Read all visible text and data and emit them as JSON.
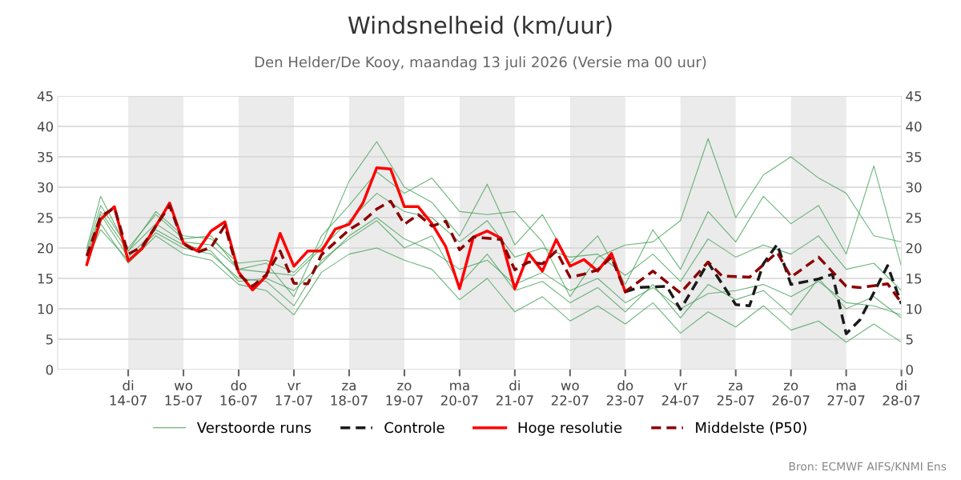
{
  "chart_data": {
    "type": "line",
    "title": "Windsnelheid (km/uur)",
    "subtitle": "Den Helder/De Kooy, maandag 13 juli 2026 (Versie ma 00 uur)",
    "annotations": [
      "Bron: ECMWF AIFS/KNMI Ens"
    ],
    "xlim": [
      "2026-07-12T17:20",
      "2026-07-28T00:00"
    ],
    "xticks": [
      {
        "value": "2026-07-14",
        "label": "di\n14-07"
      },
      {
        "value": "2026-07-15",
        "label": "wo\n15-07"
      },
      {
        "value": "2026-07-16",
        "label": "do\n16-07"
      },
      {
        "value": "2026-07-17",
        "label": "vr\n17-07"
      },
      {
        "value": "2026-07-18",
        "label": "za\n18-07"
      },
      {
        "value": "2026-07-19",
        "label": "zo\n19-07"
      },
      {
        "value": "2026-07-20",
        "label": "ma\n20-07"
      },
      {
        "value": "2026-07-21",
        "label": "di\n21-07"
      },
      {
        "value": "2026-07-22",
        "label": "wo\n22-07"
      },
      {
        "value": "2026-07-23",
        "label": "do\n23-07"
      },
      {
        "value": "2026-07-24",
        "label": "vr\n24-07"
      },
      {
        "value": "2026-07-25",
        "label": "za\n25-07"
      },
      {
        "value": "2026-07-26",
        "label": "zo\n26-07"
      },
      {
        "value": "2026-07-27",
        "label": "ma\n27-07"
      },
      {
        "value": "2026-07-28",
        "label": "di\n28-07"
      }
    ],
    "ylim": [
      0,
      45
    ],
    "yticks": [
      0,
      5,
      10,
      15,
      20,
      25,
      30,
      35,
      40,
      45
    ],
    "y2lim": [
      0,
      45
    ],
    "y2ticks": [
      0,
      5,
      10,
      15,
      20,
      25,
      30,
      35,
      40,
      45
    ],
    "grid": "y",
    "legend": "bottom",
    "bands": [
      {
        "axis": "x",
        "from": "2026-07-14",
        "to": "2026-07-15",
        "color": "#ebebeb"
      },
      {
        "axis": "x",
        "from": "2026-07-16",
        "to": "2026-07-17",
        "color": "#ebebeb"
      },
      {
        "axis": "x",
        "from": "2026-07-18",
        "to": "2026-07-19",
        "color": "#ebebeb"
      },
      {
        "axis": "x",
        "from": "2026-07-20",
        "to": "2026-07-21",
        "color": "#ebebeb"
      },
      {
        "axis": "x",
        "from": "2026-07-22",
        "to": "2026-07-23",
        "color": "#ebebeb"
      },
      {
        "axis": "x",
        "from": "2026-07-24",
        "to": "2026-07-25",
        "color": "#ebebeb"
      },
      {
        "axis": "x",
        "from": "2026-07-26",
        "to": "2026-07-27",
        "color": "#ebebeb"
      }
    ],
    "x": [
      "2026-07-13T06:00",
      "2026-07-13T12:00",
      "2026-07-14T00:00",
      "2026-07-14T12:00",
      "2026-07-15T00:00",
      "2026-07-15T12:00",
      "2026-07-16T00:00",
      "2026-07-16T12:00",
      "2026-07-17T00:00",
      "2026-07-17T12:00",
      "2026-07-18T00:00",
      "2026-07-18T12:00",
      "2026-07-19T00:00",
      "2026-07-19T12:00",
      "2026-07-20T00:00",
      "2026-07-20T12:00",
      "2026-07-21T00:00",
      "2026-07-21T12:00",
      "2026-07-22T00:00",
      "2026-07-22T12:00",
      "2026-07-23T00:00",
      "2026-07-23T12:00",
      "2026-07-24T00:00",
      "2026-07-24T12:00",
      "2026-07-25T00:00",
      "2026-07-25T12:00",
      "2026-07-26T00:00",
      "2026-07-26T12:00",
      "2026-07-27T00:00",
      "2026-07-27T12:00",
      "2026-07-28T00:00"
    ],
    "series": [
      {
        "name": "Verstoorde runs",
        "color": "#3c9d50",
        "line_style": "solid",
        "values": [
          19.5,
          27.0,
          20.0,
          25.5,
          21.5,
          22.0,
          16.5,
          17.5,
          12.0,
          22.0,
          27.0,
          32.5,
          29.0,
          31.5,
          26.0,
          25.5,
          26.0,
          21.0,
          12.0,
          18.5,
          20.5,
          21.0,
          24.5,
          38.0,
          25.0,
          32.0,
          35.0,
          31.5,
          29.0,
          22.0,
          21.0
        ]
      },
      {
        "color": "#3c9d50",
        "line_style": "solid",
        "values": [
          17.0,
          24.0,
          17.5,
          22.0,
          19.0,
          18.0,
          14.0,
          13.0,
          9.0,
          16.0,
          19.0,
          20.0,
          18.0,
          16.5,
          11.5,
          15.0,
          9.5,
          12.0,
          8.0,
          10.5,
          7.5,
          11.0,
          6.0,
          9.5,
          7.0,
          10.5,
          6.5,
          8.0,
          4.5,
          7.5,
          4.5
        ]
      },
      {
        "color": "#3c9d50",
        "line_style": "solid",
        "values": [
          20.0,
          28.5,
          19.5,
          26.0,
          22.0,
          21.5,
          17.5,
          18.0,
          16.0,
          20.5,
          31.0,
          37.5,
          30.0,
          27.5,
          22.0,
          30.5,
          20.5,
          25.5,
          17.5,
          22.0,
          14.0,
          23.0,
          16.5,
          26.0,
          21.0,
          28.5,
          24.0,
          27.0,
          19.0,
          33.5,
          17.0
        ]
      },
      {
        "color": "#3c9d50",
        "line_style": "solid",
        "values": [
          18.0,
          23.0,
          18.0,
          22.5,
          20.0,
          19.0,
          15.0,
          14.5,
          10.5,
          18.0,
          21.5,
          24.5,
          20.0,
          22.0,
          14.0,
          19.0,
          13.0,
          14.5,
          11.0,
          13.5,
          9.5,
          14.0,
          8.5,
          14.0,
          11.5,
          13.0,
          9.0,
          15.0,
          10.0,
          12.0,
          8.5
        ]
      },
      {
        "color": "#3c9d50",
        "line_style": "solid",
        "values": [
          18.5,
          26.0,
          19.5,
          24.0,
          21.0,
          20.5,
          16.5,
          16.0,
          15.5,
          20.0,
          24.5,
          29.0,
          26.0,
          25.0,
          21.0,
          24.5,
          18.5,
          20.0,
          18.5,
          19.0,
          15.5,
          19.0,
          14.5,
          21.5,
          18.5,
          20.5,
          19.0,
          22.0,
          16.5,
          17.5,
          13.0
        ]
      },
      {
        "color": "#3c9d50",
        "line_style": "solid",
        "values": [
          19.0,
          25.5,
          18.5,
          23.0,
          20.5,
          19.5,
          14.5,
          15.0,
          13.0,
          17.5,
          22.0,
          25.0,
          21.5,
          19.5,
          16.5,
          18.0,
          14.0,
          16.0,
          13.0,
          15.0,
          11.0,
          13.5,
          10.0,
          12.5,
          13.0,
          14.0,
          12.0,
          14.5,
          11.0,
          10.5,
          9.0
        ]
      },
      {
        "name": "Controle",
        "color": "#1a1a1a",
        "line_style": "dashed",
        "x": [
          "2026-07-23T00:00",
          "2026-07-23T06:00",
          "2026-07-23T18:00",
          "2026-07-24T00:00",
          "2026-07-24T12:00",
          "2026-07-25T00:00",
          "2026-07-25T06:00",
          "2026-07-25T12:00",
          "2026-07-25T18:00",
          "2026-07-26T00:00",
          "2026-07-26T12:00",
          "2026-07-26T18:00",
          "2026-07-27T00:00",
          "2026-07-27T06:00",
          "2026-07-27T18:00",
          "2026-07-28T00:00"
        ],
        "values": [
          12.8,
          13.5,
          13.7,
          9.9,
          17.6,
          10.7,
          10.5,
          17.4,
          20.6,
          14.0,
          14.9,
          15.7,
          5.9,
          8.2,
          17.1,
          10.8
        ]
      },
      {
        "name": "Hoge resolutie",
        "color": "#ff0000",
        "line_style": "solid",
        "x": [
          "2026-07-13T06:00",
          "2026-07-13T12:00",
          "2026-07-13T18:00",
          "2026-07-14T00:00",
          "2026-07-14T06:00",
          "2026-07-14T12:00",
          "2026-07-14T18:00",
          "2026-07-15T00:00",
          "2026-07-15T06:00",
          "2026-07-15T12:00",
          "2026-07-15T18:00",
          "2026-07-16T00:00",
          "2026-07-16T06:00",
          "2026-07-16T12:00",
          "2026-07-16T18:00",
          "2026-07-17T00:00",
          "2026-07-17T06:00",
          "2026-07-17T12:00",
          "2026-07-17T18:00",
          "2026-07-18T00:00",
          "2026-07-18T06:00",
          "2026-07-18T12:00",
          "2026-07-18T18:00",
          "2026-07-19T00:00",
          "2026-07-19T06:00",
          "2026-07-19T12:00",
          "2026-07-19T18:00",
          "2026-07-20T00:00",
          "2026-07-20T06:00",
          "2026-07-20T12:00",
          "2026-07-20T18:00",
          "2026-07-21T00:00",
          "2026-07-21T06:00",
          "2026-07-21T12:00",
          "2026-07-21T18:00",
          "2026-07-22T00:00",
          "2026-07-22T06:00",
          "2026-07-22T12:00",
          "2026-07-22T18:00",
          "2026-07-23T00:00"
        ],
        "values": [
          17.3,
          24.7,
          26.8,
          17.9,
          19.9,
          23.6,
          27.4,
          20.8,
          19.5,
          22.8,
          24.3,
          16.0,
          13.1,
          15.4,
          22.4,
          17.0,
          19.5,
          19.5,
          23.1,
          23.9,
          27.4,
          33.2,
          33.0,
          26.8,
          26.8,
          24.0,
          20.2,
          13.3,
          21.8,
          22.8,
          21.6,
          13.3,
          19.1,
          16.2,
          21.4,
          17.0,
          18.1,
          16.2,
          19.1,
          12.8
        ]
      },
      {
        "name": "Middelste (P50)",
        "color": "#8b0000",
        "line_style": "dashed",
        "x": [
          "2026-07-13T06:00",
          "2026-07-13T12:00",
          "2026-07-13T18:00",
          "2026-07-14T00:00",
          "2026-07-14T06:00",
          "2026-07-14T18:00",
          "2026-07-15T00:00",
          "2026-07-15T06:00",
          "2026-07-15T12:00",
          "2026-07-15T18:00",
          "2026-07-16T00:00",
          "2026-07-16T06:00",
          "2026-07-16T12:00",
          "2026-07-16T18:00",
          "2026-07-17T00:00",
          "2026-07-17T06:00",
          "2026-07-17T12:00",
          "2026-07-18T00:00",
          "2026-07-18T06:00",
          "2026-07-18T12:00",
          "2026-07-18T18:00",
          "2026-07-19T00:00",
          "2026-07-19T06:00",
          "2026-07-19T12:00",
          "2026-07-19T18:00",
          "2026-07-20T00:00",
          "2026-07-20T06:00",
          "2026-07-20T12:00",
          "2026-07-20T18:00",
          "2026-07-21T00:00",
          "2026-07-21T06:00",
          "2026-07-21T12:00",
          "2026-07-21T18:00",
          "2026-07-22T00:00",
          "2026-07-22T06:00",
          "2026-07-22T12:00",
          "2026-07-22T18:00",
          "2026-07-23T00:00",
          "2026-07-23T12:00",
          "2026-07-24T00:00",
          "2026-07-24T12:00",
          "2026-07-24T18:00",
          "2026-07-25T06:00",
          "2026-07-25T18:00",
          "2026-07-26T00:00",
          "2026-07-26T12:00",
          "2026-07-27T00:00",
          "2026-07-27T06:00",
          "2026-07-27T18:00",
          "2026-07-28T00:00"
        ],
        "values": [
          18.7,
          25.2,
          26.6,
          19.0,
          20.2,
          27.0,
          20.7,
          19.3,
          20.1,
          23.7,
          15.7,
          13.7,
          15.6,
          19.5,
          14.2,
          14.1,
          18.9,
          23.0,
          24.4,
          26.4,
          27.7,
          23.9,
          25.5,
          23.6,
          24.4,
          19.7,
          21.8,
          21.6,
          21.4,
          16.4,
          17.7,
          17.4,
          19.5,
          15.2,
          15.7,
          16.4,
          18.5,
          12.8,
          16.2,
          12.6,
          17.7,
          15.4,
          15.2,
          19.3,
          15.2,
          18.5,
          13.7,
          13.5,
          14.1,
          11.0
        ]
      }
    ]
  }
}
